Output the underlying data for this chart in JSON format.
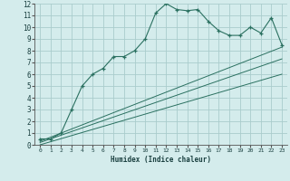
{
  "bg_color": "#d4ecec",
  "grid_color": "#aacccc",
  "line_color": "#2a7060",
  "xlabel": "Humidex (Indice chaleur)",
  "xlim": [
    -0.5,
    23.5
  ],
  "ylim": [
    0,
    12
  ],
  "xticks": [
    0,
    1,
    2,
    3,
    4,
    5,
    6,
    7,
    8,
    9,
    10,
    11,
    12,
    13,
    14,
    15,
    16,
    17,
    18,
    19,
    20,
    21,
    22,
    23
  ],
  "yticks": [
    0,
    1,
    2,
    3,
    4,
    5,
    6,
    7,
    8,
    9,
    10,
    11,
    12
  ],
  "main_x": [
    0,
    1,
    2,
    3,
    4,
    5,
    6,
    7,
    8,
    9,
    10,
    11,
    12,
    13,
    14,
    15,
    16,
    17,
    18,
    19,
    20,
    21,
    22,
    23
  ],
  "main_y": [
    0.5,
    0.5,
    1.0,
    3.0,
    5.0,
    6.0,
    6.5,
    7.5,
    7.5,
    8.0,
    9.0,
    11.2,
    12.0,
    11.5,
    11.4,
    11.5,
    10.5,
    9.7,
    9.3,
    9.3,
    10.0,
    9.5,
    10.8,
    8.5
  ],
  "line2_x": [
    0,
    23
  ],
  "line2_y": [
    0.3,
    8.3
  ],
  "line3_x": [
    0,
    23
  ],
  "line3_y": [
    0.2,
    7.3
  ],
  "line4_x": [
    0,
    23
  ],
  "line4_y": [
    0.0,
    6.0
  ]
}
